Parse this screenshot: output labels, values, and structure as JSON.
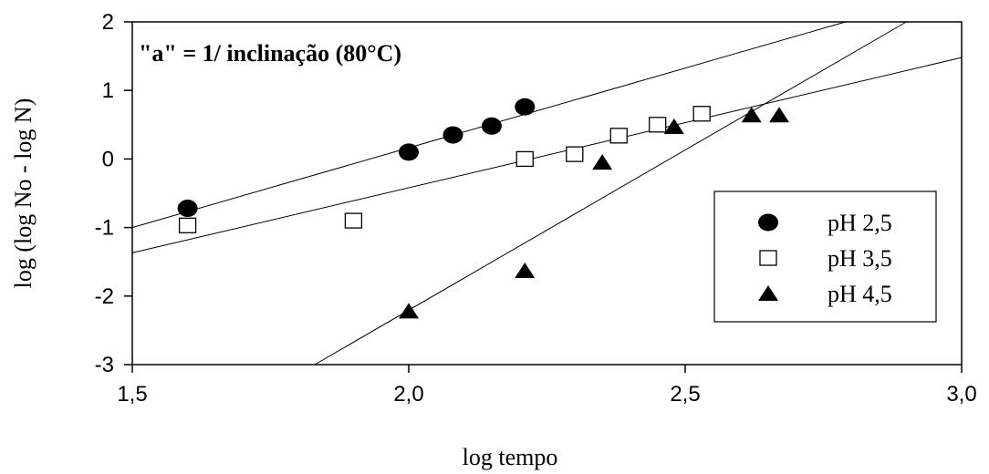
{
  "chart_data": {
    "type": "scatter",
    "xlabel": "log tempo",
    "ylabel": "log (log No - log N)",
    "xlim": [
      1.5,
      3.0
    ],
    "ylim": [
      -3,
      2
    ],
    "xticks": [
      1.5,
      2.0,
      2.5,
      3.0
    ],
    "xtick_labels": [
      "1,5",
      "2,0",
      "2,5",
      "3,0"
    ],
    "yticks": [
      -3,
      -2,
      -1,
      0,
      1,
      2
    ],
    "ytick_labels": [
      "-3",
      "-2",
      "-1",
      "0",
      "1",
      "2"
    ],
    "annotation": "\"a\" = 1/ inclinação (80°C)",
    "legend_position": "lower-right",
    "grid": false,
    "series": [
      {
        "name": "pH 2,5",
        "marker": "filled-circle",
        "x": [
          1.6,
          2.0,
          2.08,
          2.15,
          2.21
        ],
        "y": [
          -0.72,
          0.1,
          0.35,
          0.48,
          0.76
        ],
        "fit": [
          [
            1.5,
            -1.0
          ],
          [
            2.79,
            2.0
          ]
        ]
      },
      {
        "name": "pH 3,5",
        "marker": "open-square",
        "x": [
          1.6,
          1.9,
          2.21,
          2.3,
          2.38,
          2.45,
          2.53
        ],
        "y": [
          -0.97,
          -0.9,
          0.0,
          0.07,
          0.34,
          0.5,
          0.66
        ],
        "fit": [
          [
            1.5,
            -1.37
          ],
          [
            3.0,
            1.48
          ]
        ]
      },
      {
        "name": "pH 4,5",
        "marker": "filled-triangle",
        "x": [
          2.0,
          2.21,
          2.35,
          2.48,
          2.62,
          2.67
        ],
        "y": [
          -2.22,
          -1.63,
          -0.05,
          0.47,
          0.64,
          0.64
        ],
        "fit": [
          [
            1.83,
            -3.0
          ],
          [
            2.9,
            2.0
          ]
        ]
      }
    ]
  }
}
